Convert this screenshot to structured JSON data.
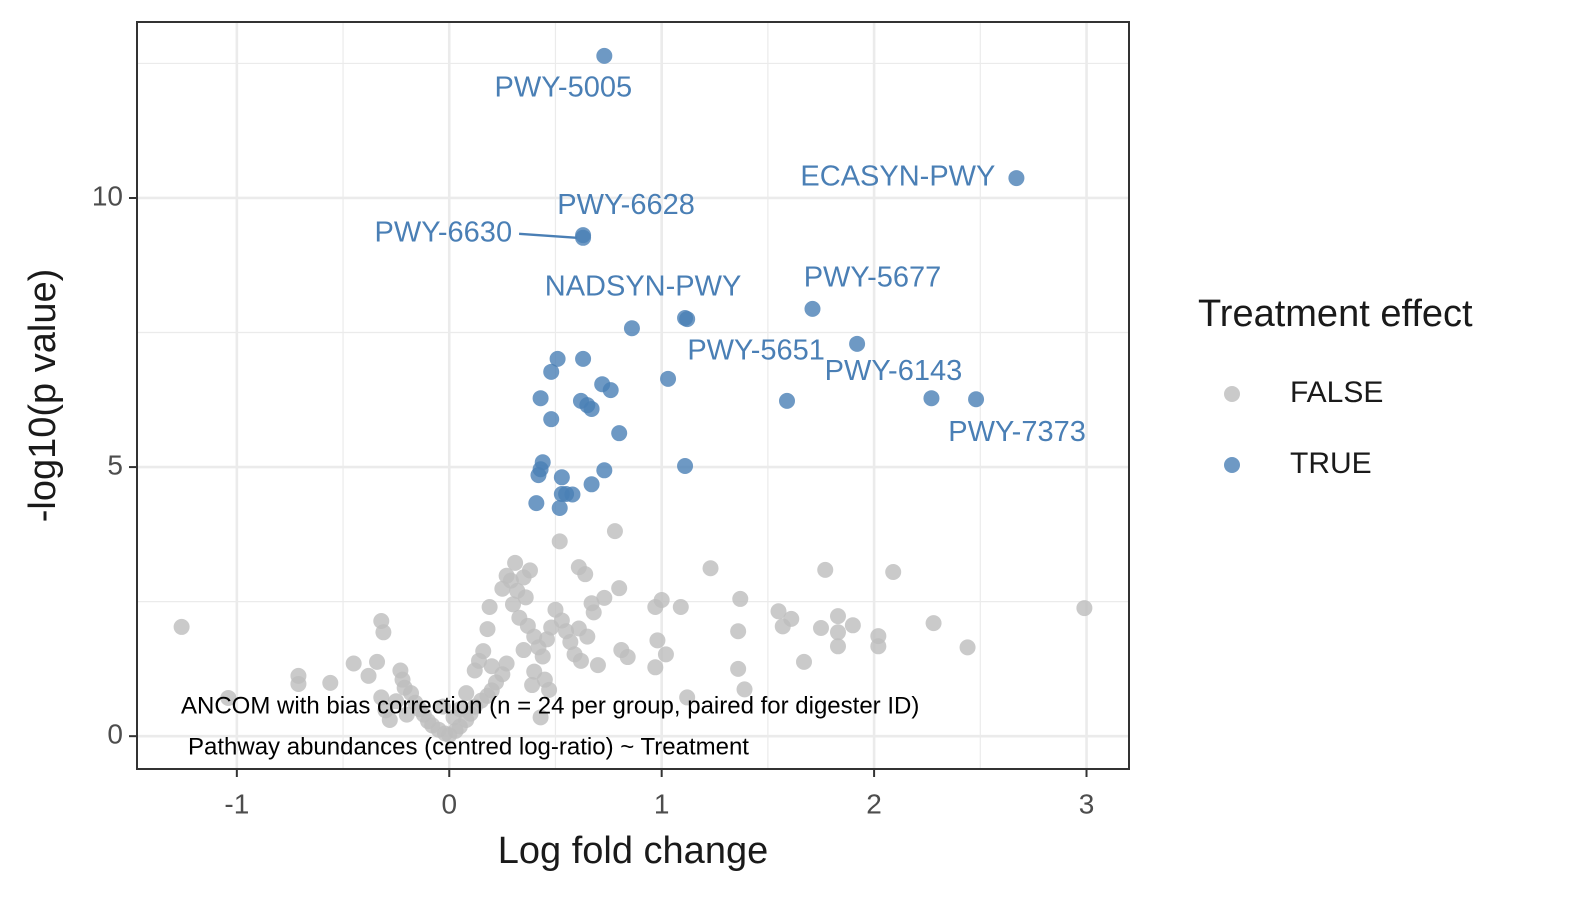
{
  "chart_data": {
    "type": "scatter",
    "x_label": "Log fold change",
    "y_label": "-log10(p value)",
    "annotations": [
      "ANCOM with bias correction (n = 24 per group, paired for digester ID)",
      "Pathway abundances (centred log-ratio) ~ Treatment"
    ],
    "legend_title": "Treatment effect",
    "legend_position": "right",
    "grid": true,
    "xlim": [
      -1.47,
      3.2
    ],
    "ylim": [
      -0.61,
      13.27
    ],
    "xticks": [
      -1,
      0,
      1,
      2,
      3
    ],
    "yticks": [
      0,
      5,
      10
    ],
    "xminor_ticks": [
      -0.5,
      0.5,
      1.5,
      2.5
    ],
    "yminor_ticks": [
      2.5,
      7.5,
      12.5
    ],
    "series": [
      {
        "name": "FALSE",
        "color": "#bdbdbd",
        "x": [
          -1.26,
          -1.04,
          -0.71,
          -0.71,
          -0.56,
          -0.32,
          -0.31,
          -0.38,
          -0.34,
          -0.32,
          -0.3,
          -0.28,
          -0.23,
          -0.22,
          -0.21,
          -0.18,
          -0.16,
          -0.14,
          -0.12,
          -0.1,
          -0.08,
          -0.05,
          -0.02,
          0,
          0.03,
          0.05,
          0.08,
          0.1,
          0.12,
          0.15,
          0.18,
          0.2,
          0.22,
          0.25,
          0.27,
          0.14,
          0.12,
          0.16,
          0.18,
          0.19,
          0.25,
          0.27,
          0.29,
          0.31,
          0.32,
          0.35,
          0.38,
          0.36,
          0.3,
          0.33,
          0.37,
          0.4,
          0.42,
          0.44,
          0.46,
          0.48,
          0.5,
          0.53,
          0.55,
          0.57,
          0.59,
          0.62,
          0.61,
          0.65,
          0.68,
          0.52,
          0.78,
          0.61,
          0.64,
          1.23,
          1.77,
          2.09,
          0.8,
          0.73,
          0.67,
          1.37,
          0.97,
          1.0,
          1.09,
          1.55,
          1.61,
          1.57,
          1.83,
          1.9,
          1.75,
          1.83,
          2.28,
          2.99,
          1.36,
          2.02,
          2.02,
          1.83,
          2.44,
          0.98,
          1.02,
          0.81,
          0.84,
          0.97,
          0.7,
          1.67,
          1.36,
          1.39,
          1.12,
          0.47,
          0.43,
          -0.45,
          -0.25,
          -0.2,
          0.05,
          0.08,
          0.02,
          -0.03,
          0.2,
          0.35,
          0.4,
          0.45,
          0.39
        ],
        "values": [
          2.03,
          0.71,
          1.12,
          0.97,
          0.99,
          2.14,
          1.93,
          1.12,
          1.38,
          0.72,
          0.48,
          0.3,
          1.22,
          1.05,
          0.9,
          0.8,
          0.62,
          0.5,
          0.4,
          0.28,
          0.2,
          0.12,
          0.05,
          0.02,
          0.1,
          0.18,
          0.3,
          0.42,
          0.55,
          0.66,
          0.75,
          0.85,
          1.0,
          1.15,
          1.35,
          1.4,
          1.22,
          1.58,
          1.99,
          2.4,
          2.74,
          2.98,
          2.89,
          3.22,
          2.7,
          2.95,
          3.08,
          2.58,
          2.45,
          2.2,
          2.05,
          1.85,
          1.65,
          1.48,
          1.8,
          2.02,
          2.35,
          2.15,
          1.95,
          1.75,
          1.52,
          1.4,
          2.0,
          1.85,
          2.3,
          3.62,
          3.81,
          3.14,
          3.01,
          3.12,
          3.09,
          3.05,
          2.75,
          2.57,
          2.47,
          2.55,
          2.4,
          2.53,
          2.4,
          2.32,
          2.18,
          2.04,
          2.23,
          2.06,
          2.01,
          1.93,
          2.1,
          2.38,
          1.95,
          1.86,
          1.67,
          1.67,
          1.65,
          1.78,
          1.52,
          1.6,
          1.47,
          1.28,
          1.32,
          1.38,
          1.25,
          0.87,
          0.72,
          0.86,
          0.35,
          1.35,
          0.65,
          0.4,
          0.5,
          0.8,
          0.35,
          0.55,
          1.3,
          1.6,
          1.2,
          1.05,
          0.95
        ]
      },
      {
        "name": "TRUE",
        "color": "#4a7fb5",
        "x": [
          0.73,
          2.67,
          0.63,
          0.63,
          1.71,
          1.11,
          1.92,
          2.27,
          2.48,
          0.86,
          0.63,
          0.51,
          0.48,
          1.03,
          0.72,
          0.76,
          0.43,
          0.62,
          0.65,
          0.67,
          1.59,
          0.48,
          0.8,
          1.11,
          0.44,
          0.43,
          0.42,
          0.73,
          0.53,
          0.67,
          0.53,
          0.55,
          0.58,
          0.41,
          0.52,
          1.12
        ],
        "values": [
          12.64,
          10.37,
          9.31,
          9.26,
          7.94,
          7.77,
          7.29,
          6.28,
          6.26,
          7.58,
          7.01,
          7.01,
          6.77,
          6.64,
          6.54,
          6.43,
          6.28,
          6.23,
          6.15,
          6.08,
          6.23,
          5.89,
          5.63,
          5.02,
          5.09,
          4.96,
          4.85,
          4.94,
          4.81,
          4.68,
          4.5,
          4.5,
          4.49,
          4.33,
          4.24,
          7.75
        ],
        "point_labels": [
          "PWY-5005",
          "ECASYN-PWY",
          "PWY-6628",
          "PWY-6630",
          "PWY-5677",
          "NADSYN-PWY",
          "PWY-5651",
          "PWY-6143",
          "PWY-7373",
          null,
          null,
          null,
          null,
          null,
          null,
          null,
          null,
          null,
          null,
          null,
          null,
          null,
          null,
          null,
          null,
          null,
          null,
          null,
          null,
          null,
          null,
          null,
          null,
          null,
          null,
          null
        ]
      }
    ]
  }
}
